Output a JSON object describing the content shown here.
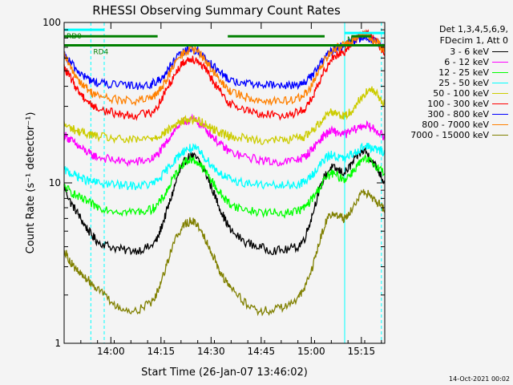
{
  "chart_data": {
    "type": "line",
    "title": "RHESSI Observing Summary Count Rates",
    "xlabel": "Start Time (26-Jan-07 13:46:02)",
    "ylabel": "Count Rate (s⁻¹ detector⁻¹)",
    "x_units": "minutes after 13:46:02",
    "xlim": [
      0,
      96
    ],
    "ylim": [
      1,
      100
    ],
    "y_scale": "log",
    "grid": false,
    "legend_position": "right",
    "x_ticks": [
      {
        "label": "14:00",
        "x": 14
      },
      {
        "label": "14:15",
        "x": 29
      },
      {
        "label": "14:30",
        "x": 44
      },
      {
        "label": "14:45",
        "x": 59
      },
      {
        "label": "15:00",
        "x": 74
      },
      {
        "label": "15:15",
        "x": 89
      }
    ],
    "y_ticks": [
      {
        "label": "1",
        "y": 1
      },
      {
        "label": "10",
        "y": 10
      },
      {
        "label": "100",
        "y": 100
      }
    ],
    "legend_header": [
      "Det 1,3,4,5,6,9,",
      "FDecim 1, Att 0"
    ],
    "series": [
      {
        "name": "3 - 6 keV",
        "color": "#000000",
        "x": [
          0,
          2,
          4,
          6,
          8,
          10,
          14,
          18,
          22,
          26,
          28,
          30,
          32,
          34,
          36,
          38,
          40,
          42,
          44,
          46,
          48,
          50,
          54,
          58,
          62,
          66,
          70,
          72,
          74,
          76,
          78,
          80,
          82,
          84,
          86,
          88,
          90,
          92,
          94,
          96
        ],
        "y": [
          9.5,
          7.5,
          6.5,
          5.5,
          4.8,
          4.3,
          4.0,
          3.8,
          3.8,
          4.0,
          4.5,
          6.0,
          8.0,
          11,
          13.5,
          15,
          14,
          12,
          9.5,
          7.5,
          6.0,
          5.0,
          4.3,
          4.0,
          3.8,
          3.8,
          4.0,
          4.5,
          6.0,
          8.5,
          11,
          12.5,
          12,
          11.5,
          13,
          15,
          16,
          14,
          12,
          10
        ]
      },
      {
        "name": "6 - 12 keV",
        "color": "#ff00ff",
        "x": [
          0,
          2,
          4,
          6,
          8,
          10,
          14,
          18,
          22,
          26,
          28,
          30,
          32,
          34,
          36,
          38,
          40,
          42,
          44,
          46,
          48,
          50,
          54,
          58,
          62,
          66,
          70,
          72,
          74,
          76,
          78,
          80,
          82,
          84,
          86,
          88,
          90,
          92,
          94,
          96
        ],
        "y": [
          20,
          18.5,
          17,
          16,
          15,
          14.5,
          14,
          13.5,
          13.5,
          14,
          15,
          17,
          20,
          22.5,
          24,
          25,
          24,
          22,
          20,
          18,
          16.5,
          15.5,
          14.5,
          14,
          13.5,
          13.5,
          14,
          14.5,
          16,
          18,
          20,
          21,
          20.5,
          20,
          21,
          22,
          23,
          22,
          21,
          19
        ]
      },
      {
        "name": "12 - 25 keV",
        "color": "#00ff00",
        "x": [
          0,
          2,
          4,
          6,
          8,
          10,
          14,
          18,
          22,
          26,
          28,
          30,
          32,
          34,
          36,
          38,
          40,
          42,
          44,
          46,
          48,
          50,
          54,
          58,
          62,
          66,
          70,
          72,
          74,
          76,
          78,
          80,
          82,
          84,
          86,
          88,
          90,
          92,
          94,
          96
        ],
        "y": [
          9.5,
          8.8,
          8.2,
          7.8,
          7.4,
          7.1,
          6.8,
          6.6,
          6.6,
          6.8,
          7.3,
          8.3,
          10,
          12,
          13.5,
          14,
          13.5,
          12,
          10.5,
          9.0,
          8.0,
          7.3,
          6.8,
          6.6,
          6.5,
          6.5,
          6.7,
          7.0,
          7.8,
          9.0,
          10.5,
          11.5,
          11,
          10.5,
          11.5,
          13,
          14,
          13.5,
          12.5,
          11.5
        ]
      },
      {
        "name": "25 - 50 keV",
        "color": "#00ffff",
        "x": [
          0,
          2,
          4,
          6,
          8,
          10,
          14,
          18,
          22,
          26,
          28,
          30,
          32,
          34,
          36,
          38,
          40,
          42,
          44,
          46,
          48,
          50,
          54,
          58,
          62,
          66,
          70,
          72,
          74,
          76,
          78,
          80,
          82,
          84,
          86,
          88,
          90,
          92,
          94,
          96
        ],
        "y": [
          12,
          11.5,
          11,
          10.5,
          10.2,
          10,
          9.8,
          9.6,
          9.6,
          9.8,
          10.3,
          11.5,
          13,
          14.5,
          16,
          16.5,
          16,
          14.5,
          13,
          11.8,
          11,
          10.4,
          10,
          9.8,
          9.6,
          9.6,
          9.8,
          10.1,
          11,
          12.5,
          14,
          15,
          14.5,
          14,
          15,
          16,
          17,
          16.5,
          16,
          15.5
        ]
      },
      {
        "name": "50 - 100 keV",
        "color": "#cccc00",
        "x": [
          0,
          2,
          4,
          6,
          8,
          10,
          14,
          18,
          22,
          26,
          28,
          30,
          32,
          34,
          36,
          38,
          40,
          42,
          44,
          46,
          48,
          50,
          54,
          58,
          62,
          66,
          70,
          72,
          74,
          76,
          78,
          80,
          82,
          84,
          86,
          88,
          90,
          92,
          94,
          96
        ],
        "y": [
          23,
          22,
          21,
          20.5,
          20,
          19.5,
          19,
          18.5,
          18.5,
          19,
          19.5,
          20.5,
          22,
          23.5,
          24.5,
          25,
          24.5,
          23.5,
          22,
          21,
          20,
          19.5,
          19,
          18.5,
          18.5,
          18.5,
          19,
          19.5,
          21,
          23,
          26,
          28,
          27,
          26,
          28,
          32,
          36,
          38,
          35,
          31
        ]
      },
      {
        "name": "100 - 300 keV",
        "color": "#ff0000",
        "x": [
          0,
          2,
          4,
          6,
          8,
          10,
          14,
          18,
          22,
          26,
          28,
          30,
          32,
          34,
          36,
          38,
          40,
          42,
          44,
          46,
          48,
          50,
          54,
          58,
          62,
          66,
          70,
          72,
          74,
          76,
          78,
          80,
          82,
          84,
          86,
          88,
          90,
          92,
          94,
          96
        ],
        "y": [
          52,
          45,
          38,
          34,
          31,
          29,
          27.5,
          26.5,
          26.5,
          27.5,
          30,
          36,
          43,
          51,
          57,
          60,
          58,
          52,
          45,
          39,
          34,
          31,
          28.5,
          27,
          26.5,
          26.5,
          27.5,
          29,
          33,
          40,
          50,
          60,
          64,
          66,
          74,
          82,
          86,
          82,
          74,
          64
        ]
      },
      {
        "name": "300 - 800 keV",
        "color": "#0000ff",
        "x": [
          0,
          2,
          4,
          6,
          8,
          10,
          14,
          18,
          22,
          26,
          28,
          30,
          32,
          34,
          36,
          38,
          40,
          42,
          44,
          46,
          48,
          50,
          54,
          58,
          62,
          66,
          70,
          72,
          74,
          76,
          78,
          80,
          82,
          84,
          86,
          88,
          90,
          92,
          94,
          96
        ],
        "y": [
          62,
          56,
          50,
          46,
          43.5,
          42,
          41,
          40.5,
          40.5,
          41,
          43,
          47,
          54,
          61,
          66,
          68,
          66,
          61,
          55,
          50,
          46,
          43.5,
          41.5,
          41,
          40.5,
          40.5,
          41,
          42.5,
          46,
          52,
          60,
          66,
          70,
          72,
          76,
          80,
          82,
          79,
          74,
          68
        ]
      },
      {
        "name": "800 - 7000 keV",
        "color": "#ff8000",
        "x": [
          0,
          2,
          4,
          6,
          8,
          10,
          14,
          18,
          22,
          26,
          28,
          30,
          32,
          34,
          36,
          38,
          40,
          42,
          44,
          46,
          48,
          50,
          54,
          58,
          62,
          66,
          70,
          72,
          74,
          76,
          78,
          80,
          82,
          84,
          86,
          88,
          90,
          92,
          94,
          96
        ],
        "y": [
          62,
          52,
          45,
          40,
          37,
          35,
          33.5,
          32.5,
          32.5,
          33.5,
          36,
          42,
          50,
          59,
          65,
          68,
          66,
          59,
          52,
          45,
          40,
          37,
          34.5,
          33,
          32.5,
          32.5,
          33.5,
          35.5,
          40,
          48,
          58,
          66,
          70,
          72,
          76,
          82,
          84,
          80,
          74,
          66
        ]
      },
      {
        "name": "7000 - 15000 keV",
        "color": "#808000",
        "x": [
          0,
          2,
          4,
          6,
          8,
          10,
          14,
          18,
          22,
          26,
          28,
          30,
          32,
          34,
          36,
          38,
          40,
          42,
          44,
          46,
          48,
          50,
          54,
          58,
          62,
          66,
          70,
          72,
          74,
          76,
          78,
          80,
          82,
          84,
          86,
          88,
          90,
          92,
          94,
          96
        ],
        "y": [
          3.8,
          3.2,
          2.8,
          2.6,
          2.4,
          2.2,
          1.8,
          1.6,
          1.6,
          1.8,
          2.1,
          2.8,
          3.8,
          4.8,
          5.5,
          5.8,
          5.5,
          4.6,
          3.8,
          3.0,
          2.5,
          2.2,
          1.8,
          1.6,
          1.6,
          1.7,
          1.9,
          2.2,
          2.8,
          4.0,
          5.5,
          6.5,
          6.2,
          6.0,
          6.8,
          8.0,
          8.8,
          8.2,
          7.5,
          6.8
        ]
      }
    ],
    "state_bars": [
      {
        "name": "RD0",
        "color": "#00ffff",
        "y": 90,
        "segments": [
          [
            0,
            12
          ]
        ]
      },
      {
        "name": "N",
        "color": "#00ffff",
        "y": 86,
        "segments": [
          [
            84,
            96
          ]
        ]
      },
      {
        "name": "RD4",
        "color": "#00ffff",
        "y": 72,
        "segments": [
          [
            8,
            16
          ]
        ]
      },
      {
        "name": "",
        "color": "#008000",
        "y": 82,
        "segments": [
          [
            0,
            28
          ],
          [
            49,
            78
          ],
          [
            86,
            92
          ]
        ]
      },
      {
        "name": "",
        "color": "#008000",
        "y": 72,
        "segments": [
          [
            0,
            96
          ]
        ]
      }
    ],
    "vertical_markers": [
      {
        "x": 0,
        "color": "#00ffff",
        "style": "solid"
      },
      {
        "x": 8,
        "color": "#00ffff",
        "style": "dashed"
      },
      {
        "x": 12,
        "color": "#00ffff",
        "style": "dashed"
      },
      {
        "x": 84,
        "color": "#00ffff",
        "style": "solid"
      },
      {
        "x": 95,
        "color": "#00ffff",
        "style": "dashed"
      }
    ]
  },
  "timestamp": "14-Oct-2021 00:02"
}
